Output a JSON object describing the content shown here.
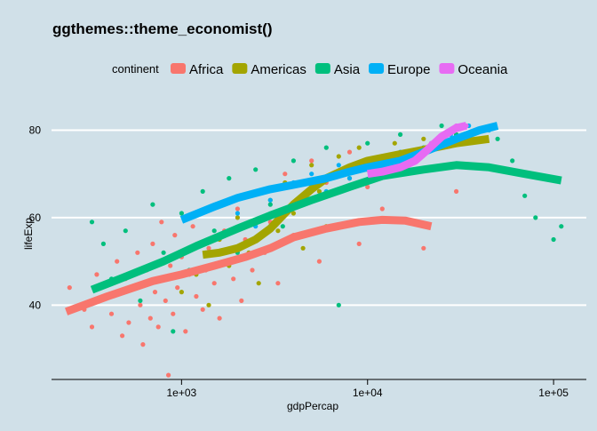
{
  "chart_data": {
    "type": "scatter",
    "title": "ggthemes::theme_economist()",
    "xlabel": "gdpPercap",
    "ylabel": "lifeExp",
    "x_scale": "log10",
    "xlim": [
      200,
      150000
    ],
    "ylim": [
      23,
      87
    ],
    "x_ticks": [
      1000,
      10000,
      100000
    ],
    "x_tick_labels": [
      "1e+03",
      "1e+04",
      "1e+05"
    ],
    "y_ticks": [
      40,
      60,
      80
    ],
    "y_tick_labels": [
      "40",
      "60",
      "80"
    ],
    "grid": "horizontal",
    "legend": {
      "title": "continent",
      "position": "top"
    },
    "background": "#d0e0e8",
    "series": [
      {
        "name": "Africa",
        "color": "#f8766d",
        "smooth": [
          [
            240,
            38.5
          ],
          [
            400,
            42
          ],
          [
            700,
            45.5
          ],
          [
            1000,
            47
          ],
          [
            1500,
            49
          ],
          [
            2200,
            51
          ],
          [
            3000,
            53
          ],
          [
            4000,
            55.5
          ],
          [
            6000,
            57.5
          ],
          [
            9000,
            59
          ],
          [
            12000,
            59.5
          ],
          [
            16000,
            59.3
          ],
          [
            22000,
            58
          ]
        ],
        "points": [
          [
            250,
            44
          ],
          [
            300,
            39
          ],
          [
            330,
            35
          ],
          [
            350,
            47
          ],
          [
            400,
            42
          ],
          [
            420,
            38
          ],
          [
            450,
            50
          ],
          [
            480,
            33
          ],
          [
            500,
            46
          ],
          [
            520,
            36
          ],
          [
            550,
            44
          ],
          [
            580,
            52
          ],
          [
            600,
            40
          ],
          [
            620,
            31
          ],
          [
            650,
            48
          ],
          [
            680,
            37
          ],
          [
            700,
            54
          ],
          [
            720,
            43
          ],
          [
            750,
            35
          ],
          [
            780,
            59
          ],
          [
            800,
            46
          ],
          [
            820,
            41
          ],
          [
            850,
            24
          ],
          [
            870,
            49
          ],
          [
            900,
            38
          ],
          [
            920,
            56
          ],
          [
            950,
            44
          ],
          [
            1000,
            51
          ],
          [
            1050,
            34
          ],
          [
            1100,
            47
          ],
          [
            1150,
            58
          ],
          [
            1200,
            42
          ],
          [
            1250,
            61
          ],
          [
            1300,
            39
          ],
          [
            1350,
            48
          ],
          [
            1400,
            53
          ],
          [
            1500,
            45
          ],
          [
            1600,
            37
          ],
          [
            1700,
            57
          ],
          [
            1800,
            50
          ],
          [
            1900,
            46
          ],
          [
            2000,
            62
          ],
          [
            2100,
            41
          ],
          [
            2200,
            55
          ],
          [
            2400,
            48
          ],
          [
            2600,
            66
          ],
          [
            2800,
            52
          ],
          [
            3000,
            59
          ],
          [
            3300,
            45
          ],
          [
            3600,
            70
          ],
          [
            4000,
            56
          ],
          [
            4500,
            63
          ],
          [
            5000,
            73
          ],
          [
            5500,
            50
          ],
          [
            6000,
            68
          ],
          [
            7000,
            58
          ],
          [
            8000,
            75
          ],
          [
            9000,
            54
          ],
          [
            10000,
            67
          ],
          [
            12000,
            62
          ],
          [
            14000,
            72
          ],
          [
            20000,
            53
          ],
          [
            30000,
            66
          ]
        ]
      },
      {
        "name": "Americas",
        "color": "#a3a500",
        "smooth": [
          [
            1300,
            51.5
          ],
          [
            1600,
            52
          ],
          [
            2000,
            53
          ],
          [
            2500,
            55
          ],
          [
            3000,
            57.5
          ],
          [
            3500,
            60.5
          ],
          [
            4000,
            63
          ],
          [
            5000,
            66.5
          ],
          [
            6000,
            69
          ],
          [
            8000,
            71.5
          ],
          [
            10000,
            73
          ],
          [
            15000,
            74.5
          ],
          [
            20000,
            75.5
          ],
          [
            30000,
            77
          ],
          [
            45000,
            78
          ]
        ],
        "points": [
          [
            1000,
            43
          ],
          [
            1200,
            47
          ],
          [
            1400,
            40
          ],
          [
            1600,
            55
          ],
          [
            1800,
            49
          ],
          [
            2000,
            60
          ],
          [
            2300,
            52
          ],
          [
            2600,
            45
          ],
          [
            3000,
            64
          ],
          [
            3300,
            57
          ],
          [
            3600,
            68
          ],
          [
            4000,
            61
          ],
          [
            4500,
            53
          ],
          [
            5000,
            72
          ],
          [
            5500,
            66
          ],
          [
            6000,
            58
          ],
          [
            7000,
            74
          ],
          [
            8000,
            69
          ],
          [
            9000,
            76
          ],
          [
            10000,
            71
          ],
          [
            12000,
            73
          ],
          [
            14000,
            77
          ],
          [
            16000,
            75
          ],
          [
            20000,
            78
          ],
          [
            25000,
            77
          ],
          [
            30000,
            79
          ],
          [
            35000,
            78
          ],
          [
            40000,
            80
          ]
        ]
      },
      {
        "name": "Asia",
        "color": "#00bf7d",
        "smooth": [
          [
            330,
            43.5
          ],
          [
            500,
            46.5
          ],
          [
            800,
            50
          ],
          [
            1200,
            53.5
          ],
          [
            2000,
            57.5
          ],
          [
            3000,
            60.5
          ],
          [
            5000,
            64
          ],
          [
            8000,
            67
          ],
          [
            12000,
            69.5
          ],
          [
            20000,
            71
          ],
          [
            30000,
            72
          ],
          [
            45000,
            71.5
          ],
          [
            70000,
            70
          ],
          [
            110000,
            68.5
          ]
        ],
        "points": [
          [
            330,
            59
          ],
          [
            380,
            54
          ],
          [
            420,
            46
          ],
          [
            500,
            57
          ],
          [
            600,
            41
          ],
          [
            700,
            63
          ],
          [
            800,
            52
          ],
          [
            900,
            34
          ],
          [
            1000,
            61
          ],
          [
            1100,
            48
          ],
          [
            1300,
            66
          ],
          [
            1500,
            57
          ],
          [
            1800,
            69
          ],
          [
            2000,
            52
          ],
          [
            2500,
            71
          ],
          [
            3000,
            63
          ],
          [
            3500,
            58
          ],
          [
            4000,
            73
          ],
          [
            5000,
            67
          ],
          [
            6000,
            76
          ],
          [
            7000,
            40
          ],
          [
            8000,
            71
          ],
          [
            10000,
            77
          ],
          [
            12000,
            74
          ],
          [
            15000,
            79
          ],
          [
            20000,
            76
          ],
          [
            25000,
            81
          ],
          [
            30000,
            79
          ],
          [
            40000,
            80
          ],
          [
            50000,
            78
          ],
          [
            60000,
            73
          ],
          [
            70000,
            65
          ],
          [
            80000,
            60
          ],
          [
            100000,
            55
          ],
          [
            110000,
            58
          ]
        ]
      },
      {
        "name": "Europe",
        "color": "#00b0f6",
        "smooth": [
          [
            1000,
            59.5
          ],
          [
            1500,
            62.5
          ],
          [
            2000,
            64.5
          ],
          [
            3000,
            66.5
          ],
          [
            4000,
            67.5
          ],
          [
            6000,
            69
          ],
          [
            8000,
            70.5
          ],
          [
            10000,
            71.5
          ],
          [
            15000,
            73
          ],
          [
            20000,
            75
          ],
          [
            30000,
            78
          ],
          [
            40000,
            80
          ],
          [
            50000,
            81
          ]
        ],
        "points": [
          [
            1500,
            55
          ],
          [
            2000,
            61
          ],
          [
            2500,
            58
          ],
          [
            3000,
            64
          ],
          [
            4000,
            68
          ],
          [
            5000,
            70
          ],
          [
            6000,
            66
          ],
          [
            7000,
            72
          ],
          [
            8000,
            69
          ],
          [
            10000,
            73
          ],
          [
            12000,
            71
          ],
          [
            15000,
            75
          ],
          [
            18000,
            74
          ],
          [
            22000,
            77
          ],
          [
            28000,
            79
          ],
          [
            35000,
            81
          ],
          [
            45000,
            80
          ]
        ]
      },
      {
        "name": "Oceania",
        "color": "#e76bf3",
        "smooth": [
          [
            10000,
            70
          ],
          [
            12000,
            70.5
          ],
          [
            15000,
            71.5
          ],
          [
            18000,
            73
          ],
          [
            21000,
            75.5
          ],
          [
            25000,
            78.5
          ],
          [
            30000,
            80.5
          ],
          [
            34000,
            81
          ]
        ],
        "points": [
          [
            10500,
            69
          ],
          [
            12000,
            71
          ],
          [
            14000,
            70
          ],
          [
            16000,
            72
          ],
          [
            19000,
            74
          ],
          [
            22000,
            77
          ],
          [
            26000,
            79
          ],
          [
            30000,
            81
          ],
          [
            34000,
            81
          ]
        ]
      }
    ]
  }
}
